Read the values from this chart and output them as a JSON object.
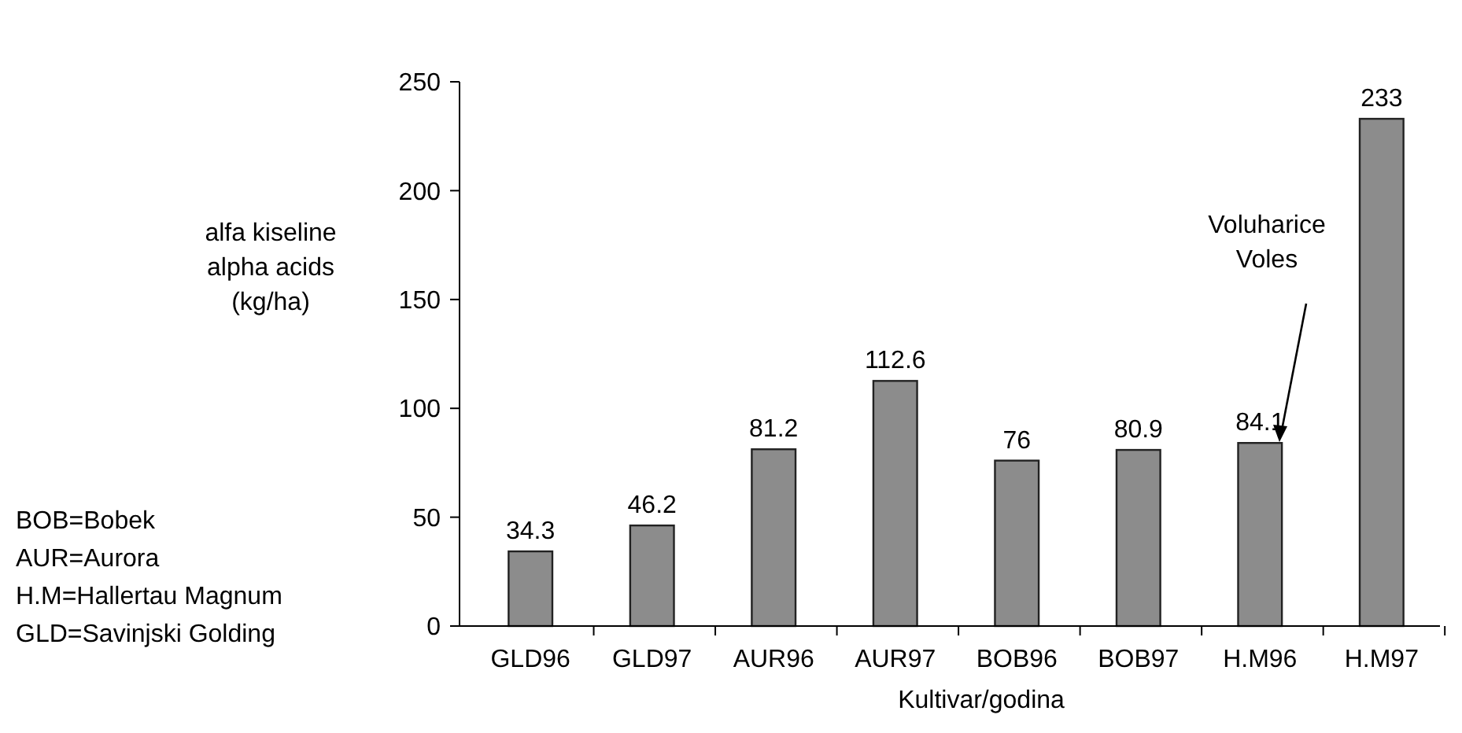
{
  "chart_data": {
    "type": "bar",
    "ylabel": "alfa kiseline\nalpha acids\n(kg/ha)",
    "xlabel": "Kultivar/godina",
    "categories": [
      "GLD96",
      "GLD97",
      "AUR96",
      "AUR97",
      "BOB96",
      "BOB97",
      "H.M96",
      "H.M97"
    ],
    "values": [
      34.3,
      46.2,
      81.2,
      112.6,
      76,
      80.9,
      84.1,
      233
    ],
    "color": "#8c8c8c",
    "ylim": [
      0,
      250
    ],
    "yticks": [
      0,
      50,
      100,
      150,
      200,
      250
    ],
    "grid": false,
    "data_labels": true,
    "annotations": [
      "Voluharice\nVoles",
      "BOB=Bobek",
      "AUR=Aurora",
      "H.M=Hallertau Magnum",
      "GLD=Savinjski Golding"
    ]
  }
}
